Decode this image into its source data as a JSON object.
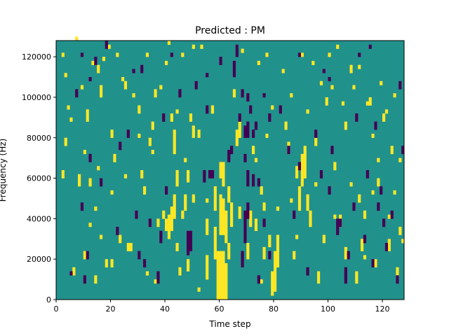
{
  "chart_data": {
    "type": "heatmap",
    "title": "Predicted : PM",
    "xlabel": "Time step",
    "ylabel": "Frequency (Hz)",
    "xlim": [
      0,
      128
    ],
    "ylim": [
      0,
      128000
    ],
    "x_ticks": [
      "0",
      "20",
      "40",
      "60",
      "80",
      "100",
      "120"
    ],
    "y_ticks": [
      "0",
      "20000",
      "40000",
      "60000",
      "80000",
      "100000",
      "120000"
    ],
    "value_levels": [
      -1,
      0,
      1
    ],
    "colors": {
      "low": "#440154",
      "mid": "#21918c",
      "high": "#fde725"
    },
    "background_value": 0,
    "n_time_steps": 128,
    "n_freq_bins": 64,
    "freq_bin_width_hz": 2000,
    "cells": [
      [
        59,
        0,
        12,
        1
      ],
      [
        60,
        0,
        12,
        1
      ],
      [
        61,
        0,
        12,
        1
      ],
      [
        62,
        0,
        9,
        1
      ],
      [
        60,
        16,
        10,
        1
      ],
      [
        61,
        16,
        9,
        1
      ],
      [
        62,
        14,
        8,
        1
      ],
      [
        61,
        28,
        6,
        1
      ],
      [
        60,
        30,
        4,
        1
      ],
      [
        55,
        5,
        6,
        1
      ],
      [
        55,
        16,
        4,
        1
      ],
      [
        58,
        10,
        8,
        1
      ],
      [
        58,
        22,
        6,
        1
      ],
      [
        63,
        10,
        4,
        1
      ],
      [
        63,
        24,
        4,
        1
      ],
      [
        64,
        18,
        6,
        1
      ],
      [
        41,
        15,
        6,
        1
      ],
      [
        42,
        17,
        6,
        1
      ],
      [
        43,
        20,
        6,
        1
      ],
      [
        43,
        36,
        6,
        1
      ],
      [
        40,
        17,
        3,
        1
      ],
      [
        39,
        20,
        2,
        1
      ],
      [
        44,
        28,
        4,
        1
      ],
      [
        46,
        20,
        2,
        1
      ],
      [
        47,
        22,
        4,
        1
      ],
      [
        48,
        7,
        3,
        1
      ],
      [
        48,
        29,
        3,
        1
      ],
      [
        50,
        40,
        3,
        1
      ],
      [
        66,
        38,
        4,
        1
      ],
      [
        67,
        40,
        4,
        1
      ],
      [
        67,
        20,
        3,
        1
      ],
      [
        70,
        10,
        4,
        1
      ],
      [
        71,
        18,
        4,
        1
      ],
      [
        73,
        17,
        3,
        1
      ],
      [
        76,
        10,
        3,
        1
      ],
      [
        76,
        22,
        2,
        1
      ],
      [
        78,
        13,
        3,
        1
      ],
      [
        79,
        1,
        6,
        1
      ],
      [
        80,
        2,
        10,
        1
      ],
      [
        81,
        8,
        8,
        1
      ],
      [
        85,
        36,
        3,
        1
      ],
      [
        88,
        30,
        3,
        1
      ],
      [
        89,
        22,
        6,
        1
      ],
      [
        90,
        28,
        8,
        1
      ],
      [
        91,
        30,
        8,
        1
      ],
      [
        92,
        22,
        4,
        1
      ],
      [
        93,
        18,
        4,
        1
      ],
      [
        96,
        4,
        3,
        1
      ],
      [
        104,
        18,
        3,
        1
      ],
      [
        106,
        10,
        3,
        1
      ],
      [
        110,
        4,
        3,
        1
      ],
      [
        112,
        12,
        3,
        1
      ],
      [
        113,
        20,
        2,
        1
      ],
      [
        117,
        8,
        2,
        1
      ],
      [
        122,
        12,
        3,
        1
      ],
      [
        126,
        16,
        2,
        1
      ],
      [
        2,
        30,
        2,
        1
      ],
      [
        3,
        38,
        2,
        1
      ],
      [
        6,
        6,
        2,
        1
      ],
      [
        8,
        28,
        3,
        1
      ],
      [
        10,
        10,
        2,
        1
      ],
      [
        11,
        44,
        3,
        1
      ],
      [
        14,
        4,
        2,
        1
      ],
      [
        16,
        50,
        3,
        1
      ],
      [
        18,
        8,
        2,
        1
      ],
      [
        21,
        34,
        2,
        1
      ],
      [
        23,
        14,
        2,
        1
      ],
      [
        27,
        12,
        2,
        1
      ],
      [
        30,
        46,
        2,
        1
      ],
      [
        32,
        26,
        2,
        1
      ],
      [
        34,
        38,
        2,
        1
      ],
      [
        12,
        28,
        2,
        1
      ],
      [
        15,
        56,
        2,
        1
      ],
      [
        20,
        40,
        2,
        1
      ],
      [
        25,
        52,
        2,
        1
      ],
      [
        26,
        12,
        2,
        1
      ],
      [
        35,
        42,
        2,
        1
      ],
      [
        36,
        50,
        2,
        1
      ],
      [
        42,
        44,
        2,
        1
      ],
      [
        45,
        6,
        2,
        1
      ],
      [
        49,
        44,
        2,
        1
      ],
      [
        52,
        40,
        2,
        1
      ],
      [
        20,
        8,
        2,
        1
      ],
      [
        31,
        30,
        2,
        1
      ],
      [
        37,
        18,
        2,
        1
      ],
      [
        44,
        12,
        2,
        1
      ],
      [
        50,
        24,
        2,
        1
      ],
      [
        57,
        46,
        2,
        1
      ],
      [
        65,
        50,
        2,
        1
      ],
      [
        72,
        36,
        2,
        1
      ],
      [
        75,
        26,
        2,
        1
      ],
      [
        84,
        42,
        2,
        1
      ],
      [
        87,
        10,
        2,
        1
      ],
      [
        95,
        38,
        2,
        1
      ],
      [
        99,
        48,
        2,
        1
      ],
      [
        102,
        32,
        2,
        1
      ],
      [
        108,
        56,
        2,
        1
      ],
      [
        111,
        24,
        2,
        1
      ],
      [
        115,
        48,
        2,
        1
      ],
      [
        118,
        28,
        2,
        1
      ],
      [
        120,
        44,
        2,
        1
      ],
      [
        123,
        36,
        2,
        1
      ],
      [
        125,
        6,
        2,
        1
      ],
      [
        106,
        42,
        2,
        1
      ],
      [
        98,
        14,
        2,
        1
      ],
      [
        2,
        60,
        1,
        1
      ],
      [
        3,
        55,
        1,
        1
      ],
      [
        4,
        47,
        1,
        1
      ],
      [
        5,
        44,
        1,
        1
      ],
      [
        7,
        64,
        1,
        1
      ],
      [
        9,
        52,
        1,
        1
      ],
      [
        13,
        58,
        1,
        1
      ],
      [
        17,
        59,
        1,
        1
      ],
      [
        19,
        62,
        1,
        1
      ],
      [
        22,
        60,
        1,
        1
      ],
      [
        24,
        54,
        1,
        1
      ],
      [
        28,
        50,
        1,
        1
      ],
      [
        33,
        60,
        1,
        1
      ],
      [
        38,
        52,
        1,
        1
      ],
      [
        40,
        58,
        1,
        1
      ],
      [
        41,
        63,
        1,
        1
      ],
      [
        46,
        60,
        1,
        1
      ],
      [
        50,
        62,
        1,
        1
      ],
      [
        53,
        62,
        1,
        1
      ],
      [
        68,
        61,
        1,
        1
      ],
      [
        74,
        58,
        1,
        1
      ],
      [
        77,
        60,
        1,
        1
      ],
      [
        83,
        56,
        1,
        1
      ],
      [
        86,
        50,
        1,
        1
      ],
      [
        90,
        60,
        1,
        1
      ],
      [
        94,
        58,
        1,
        1
      ],
      [
        97,
        53,
        1,
        1
      ],
      [
        100,
        60,
        1,
        1
      ],
      [
        101,
        52,
        1,
        1
      ],
      [
        103,
        62,
        1,
        1
      ],
      [
        105,
        48,
        1,
        1
      ],
      [
        109,
        52,
        1,
        1
      ],
      [
        111,
        57,
        1,
        1
      ],
      [
        114,
        48,
        1,
        1
      ],
      [
        116,
        40,
        1,
        1
      ],
      [
        119,
        53,
        1,
        1
      ],
      [
        121,
        46,
        1,
        1
      ],
      [
        124,
        50,
        1,
        1
      ],
      [
        126,
        34,
        1,
        1
      ],
      [
        127,
        14,
        1,
        1
      ],
      [
        47,
        34,
        1,
        1
      ],
      [
        44,
        46,
        1,
        1
      ],
      [
        35,
        36,
        1,
        1
      ],
      [
        30,
        40,
        1,
        1
      ],
      [
        25,
        30,
        1,
        1
      ],
      [
        15,
        32,
        1,
        1
      ],
      [
        10,
        36,
        1,
        1
      ],
      [
        12,
        18,
        1,
        1
      ],
      [
        14,
        22,
        1,
        1
      ],
      [
        16,
        15,
        1,
        1
      ],
      [
        20,
        26,
        1,
        1
      ],
      [
        33,
        6,
        1,
        1
      ],
      [
        36,
        4,
        1,
        1
      ],
      [
        52,
        2,
        1,
        1
      ],
      [
        55,
        24,
        1,
        1
      ],
      [
        73,
        34,
        1,
        1
      ],
      [
        75,
        4,
        1,
        1
      ],
      [
        77,
        40,
        1,
        1
      ],
      [
        79,
        47,
        1,
        1
      ],
      [
        81,
        22,
        1,
        1
      ],
      [
        86,
        24,
        1,
        1
      ],
      [
        88,
        15,
        1,
        1
      ],
      [
        92,
        46,
        1,
        1
      ],
      [
        95,
        28,
        1,
        1
      ],
      [
        102,
        20,
        1,
        1
      ],
      [
        108,
        28,
        1,
        1
      ],
      [
        113,
        10,
        1,
        1
      ],
      [
        116,
        26,
        1,
        1
      ],
      [
        118,
        34,
        1,
        1
      ],
      [
        122,
        20,
        1,
        1
      ],
      [
        124,
        26,
        1,
        1
      ],
      [
        71,
        46,
        2,
        -1
      ],
      [
        69,
        34,
        2,
        -1
      ],
      [
        69,
        40,
        3,
        -1
      ],
      [
        68,
        50,
        2,
        -1
      ],
      [
        68,
        8,
        4,
        -1
      ],
      [
        69,
        14,
        8,
        -1
      ],
      [
        70,
        20,
        4,
        -1
      ],
      [
        70,
        28,
        4,
        -1
      ],
      [
        70,
        40,
        4,
        -1
      ],
      [
        72,
        28,
        3,
        -1
      ],
      [
        72,
        40,
        2,
        -1
      ],
      [
        65,
        55,
        4,
        -1
      ],
      [
        66,
        60,
        3,
        -1
      ],
      [
        67,
        44,
        2,
        -1
      ],
      [
        73,
        42,
        2,
        -1
      ],
      [
        74,
        4,
        2,
        -1
      ],
      [
        76,
        18,
        2,
        -1
      ],
      [
        78,
        10,
        2,
        -1
      ],
      [
        78,
        44,
        2,
        -1
      ],
      [
        74,
        28,
        2,
        -1
      ],
      [
        70,
        49,
        2,
        -1
      ],
      [
        63,
        34,
        3,
        -1
      ],
      [
        64,
        36,
        2,
        -1
      ],
      [
        57,
        30,
        2,
        -1
      ],
      [
        48,
        11,
        6,
        -1
      ],
      [
        49,
        12,
        5,
        -1
      ],
      [
        54,
        29,
        3,
        -1
      ],
      [
        56,
        30,
        2,
        -1
      ],
      [
        37,
        4,
        3,
        -1
      ],
      [
        38,
        14,
        3,
        -1
      ],
      [
        40,
        26,
        2,
        -1
      ],
      [
        32,
        8,
        2,
        -1
      ],
      [
        34,
        18,
        2,
        -1
      ],
      [
        30,
        10,
        2,
        -1
      ],
      [
        26,
        40,
        2,
        -1
      ],
      [
        23,
        37,
        2,
        -1
      ],
      [
        22,
        16,
        2,
        -1
      ],
      [
        16,
        28,
        2,
        -1
      ],
      [
        12,
        34,
        2,
        -1
      ],
      [
        11,
        10,
        2,
        -1
      ],
      [
        10,
        4,
        2,
        -1
      ],
      [
        9,
        22,
        2,
        -1
      ],
      [
        5,
        6,
        1,
        -1
      ],
      [
        7,
        50,
        2,
        -1
      ],
      [
        14,
        58,
        2,
        -1
      ],
      [
        18,
        62,
        2,
        -1
      ],
      [
        29,
        20,
        2,
        -1
      ],
      [
        31,
        56,
        2,
        -1
      ],
      [
        39,
        44,
        2,
        -1
      ],
      [
        45,
        50,
        2,
        -1
      ],
      [
        51,
        52,
        2,
        -1
      ],
      [
        55,
        46,
        2,
        -1
      ],
      [
        60,
        58,
        2,
        -1
      ],
      [
        82,
        46,
        2,
        -1
      ],
      [
        85,
        36,
        2,
        -1
      ],
      [
        87,
        20,
        2,
        -1
      ],
      [
        89,
        32,
        2,
        -1
      ],
      [
        92,
        6,
        2,
        -1
      ],
      [
        95,
        40,
        2,
        -1
      ],
      [
        97,
        30,
        2,
        -1
      ],
      [
        100,
        26,
        2,
        -1
      ],
      [
        101,
        36,
        2,
        -1
      ],
      [
        103,
        16,
        4,
        -1
      ],
      [
        104,
        18,
        2,
        -1
      ],
      [
        106,
        4,
        4,
        -1
      ],
      [
        107,
        10,
        2,
        -1
      ],
      [
        109,
        22,
        2,
        -1
      ],
      [
        110,
        44,
        2,
        -1
      ],
      [
        113,
        14,
        2,
        -1
      ],
      [
        114,
        30,
        2,
        -1
      ],
      [
        116,
        8,
        2,
        -1
      ],
      [
        118,
        22,
        2,
        -1
      ],
      [
        119,
        26,
        2,
        -1
      ],
      [
        121,
        12,
        2,
        -1
      ],
      [
        123,
        20,
        2,
        -1
      ],
      [
        125,
        4,
        2,
        -1
      ],
      [
        126,
        52,
        2,
        -1
      ],
      [
        127,
        36,
        2,
        -1
      ],
      [
        117,
        42,
        2,
        -1
      ],
      [
        120,
        18,
        2,
        -1
      ],
      [
        9,
        60,
        1,
        -1
      ],
      [
        12,
        54,
        1,
        -1
      ],
      [
        28,
        56,
        1,
        -1
      ],
      [
        42,
        60,
        1,
        -1
      ],
      [
        55,
        55,
        1,
        -1
      ],
      [
        76,
        50,
        1,
        -1
      ],
      [
        89,
        60,
        1,
        -1
      ],
      [
        98,
        56,
        1,
        -1
      ],
      [
        100,
        54,
        1,
        -1
      ],
      [
        111,
        60,
        1,
        -1
      ],
      [
        115,
        62,
        1,
        -1
      ]
    ]
  }
}
